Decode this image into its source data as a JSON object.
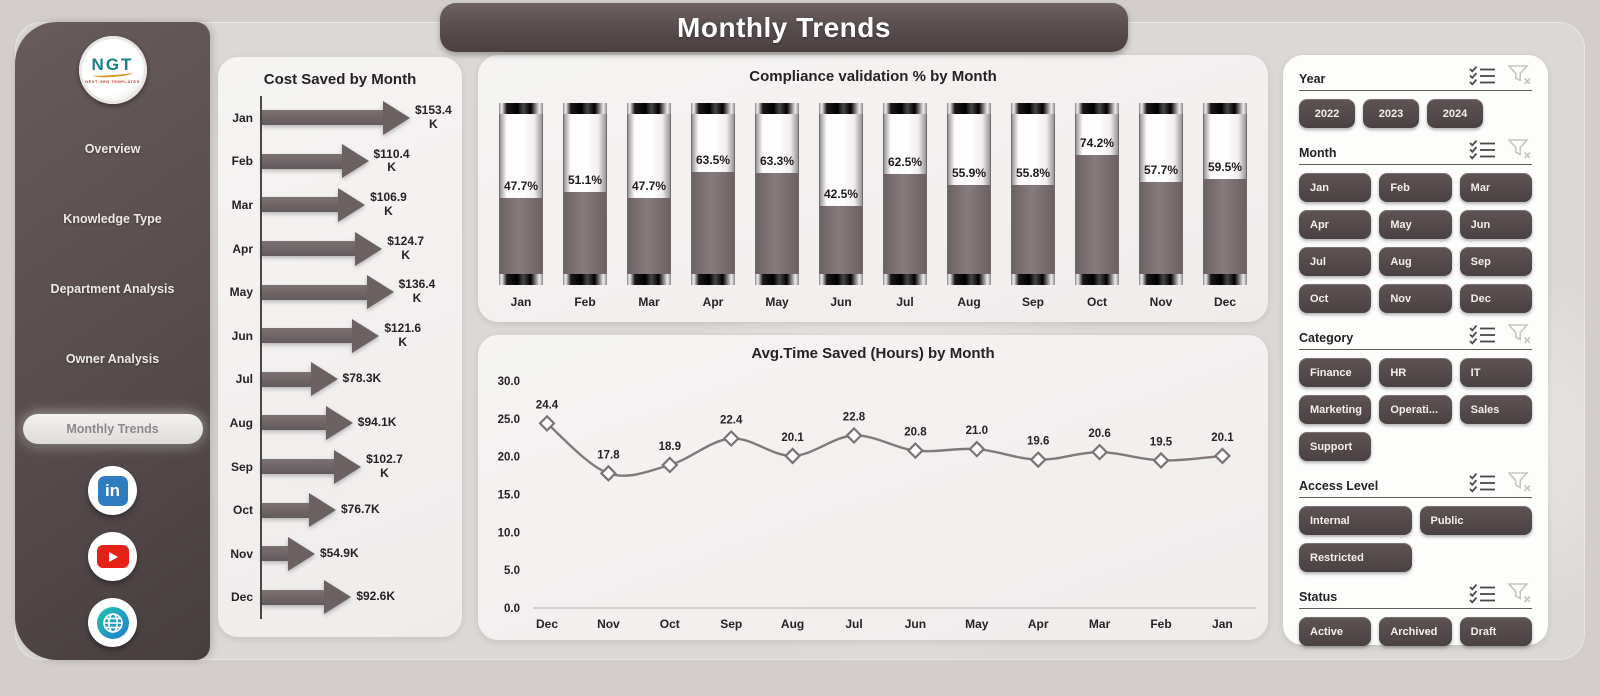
{
  "page": {
    "title_banner": "Monthly Trends"
  },
  "colors": {
    "sidebar_brown": "#574c4d",
    "banner_brown": "#5a4f50",
    "bar_fill": "#6b6163",
    "card_bg": "#f3f2f1",
    "canvas_bg": "#dcd8d6",
    "button_dark": "#4e4445",
    "linkedin_blue": "#2f7cc1",
    "youtube_red": "#e62117",
    "logo_teal": "#177f8c"
  },
  "sidebar": {
    "logo": {
      "text": "NGT",
      "subtext": "NEXT GEN TEMPLATES"
    },
    "items": [
      {
        "label": "Overview",
        "selected": false
      },
      {
        "label": "Knowledge Type",
        "selected": false
      },
      {
        "label": "Department Analysis",
        "selected": false
      },
      {
        "label": "Owner Analysis",
        "selected": false
      },
      {
        "label": "Monthly Trends",
        "selected": true
      }
    ],
    "social": [
      "linkedin",
      "youtube",
      "globe"
    ]
  },
  "chart_data": [
    {
      "type": "bar",
      "orientation": "horizontal-arrow",
      "title": "Cost Saved by Month",
      "categories": [
        "Jan",
        "Feb",
        "Mar",
        "Apr",
        "May",
        "Jun",
        "Jul",
        "Aug",
        "Sep",
        "Oct",
        "Nov",
        "Dec"
      ],
      "values": [
        153.4,
        110.4,
        106.9,
        124.7,
        136.4,
        121.6,
        78.3,
        94.1,
        102.7,
        76.7,
        54.9,
        92.6
      ],
      "labels": [
        "$153.4\nK",
        "$110.4\nK",
        "$106.9\nK",
        "$124.7\nK",
        "$136.4\nK",
        "$121.6\nK",
        "$78.3K",
        "$94.1K",
        "$102.7\nK",
        "$76.7K",
        "$54.9K",
        "$92.6K"
      ],
      "unit": "K USD",
      "xlabel": "",
      "ylabel": "",
      "xmax": 153.4
    },
    {
      "type": "bar",
      "orientation": "vertical-cylinder",
      "title": "Compliance validation % by Month",
      "categories": [
        "Jan",
        "Feb",
        "Mar",
        "Apr",
        "May",
        "Jun",
        "Jul",
        "Aug",
        "Sep",
        "Oct",
        "Nov",
        "Dec"
      ],
      "values": [
        47.7,
        51.1,
        47.7,
        63.5,
        63.3,
        42.5,
        62.5,
        55.9,
        55.8,
        74.2,
        57.7,
        59.5
      ],
      "labels": [
        "47.7%",
        "51.1%",
        "47.7%",
        "63.5%",
        "63.3%",
        "42.5%",
        "62.5%",
        "55.9%",
        "55.8%",
        "74.2%",
        "57.7%",
        "59.5%"
      ],
      "xlabel": "",
      "ylabel": "",
      "ylim": [
        0,
        100
      ]
    },
    {
      "type": "line",
      "title": "Avg.Time Saved (Hours) by Month",
      "categories": [
        "Dec",
        "Nov",
        "Oct",
        "Sep",
        "Aug",
        "Jul",
        "Jun",
        "May",
        "Apr",
        "Mar",
        "Feb",
        "Jan"
      ],
      "values": [
        24.4,
        17.8,
        18.9,
        22.4,
        20.1,
        22.8,
        20.8,
        21.0,
        19.6,
        20.6,
        19.5,
        20.1
      ],
      "labels": [
        "24.4",
        "17.8",
        "18.9",
        "22.4",
        "20.1",
        "22.8",
        "20.8",
        "21.0",
        "19.6",
        "20.6",
        "19.5",
        "20.1"
      ],
      "yticks": [
        "0.0",
        "5.0",
        "10.0",
        "15.0",
        "20.0",
        "25.0",
        "30.0"
      ],
      "marker": "diamond",
      "xlabel": "",
      "ylabel": "",
      "ylim": [
        0,
        30
      ],
      "grid": false,
      "legend": "none"
    }
  ],
  "filters": {
    "header_icons": [
      "select-all-icon",
      "clear-filter-icon"
    ],
    "groups": [
      {
        "label": "Year",
        "columns": 3,
        "compact": true,
        "items": [
          "2022",
          "2023",
          "2024"
        ]
      },
      {
        "label": "Month",
        "columns": 3,
        "compact": false,
        "items": [
          "Jan",
          "Feb",
          "Mar",
          "Apr",
          "May",
          "Jun",
          "Jul",
          "Aug",
          "Sep",
          "Oct",
          "Nov",
          "Dec"
        ]
      },
      {
        "label": "Category",
        "columns": 3,
        "compact": false,
        "items": [
          "Finance",
          "HR",
          "IT",
          "Marketing",
          "Operati...",
          "Sales",
          "Support"
        ]
      },
      {
        "label": "Access Level",
        "columns": 2,
        "compact": false,
        "items": [
          "Internal",
          "Public",
          "Restricted"
        ]
      },
      {
        "label": "Status",
        "columns": 3,
        "compact": false,
        "items": [
          "Active",
          "Archived",
          "Draft"
        ]
      }
    ]
  }
}
